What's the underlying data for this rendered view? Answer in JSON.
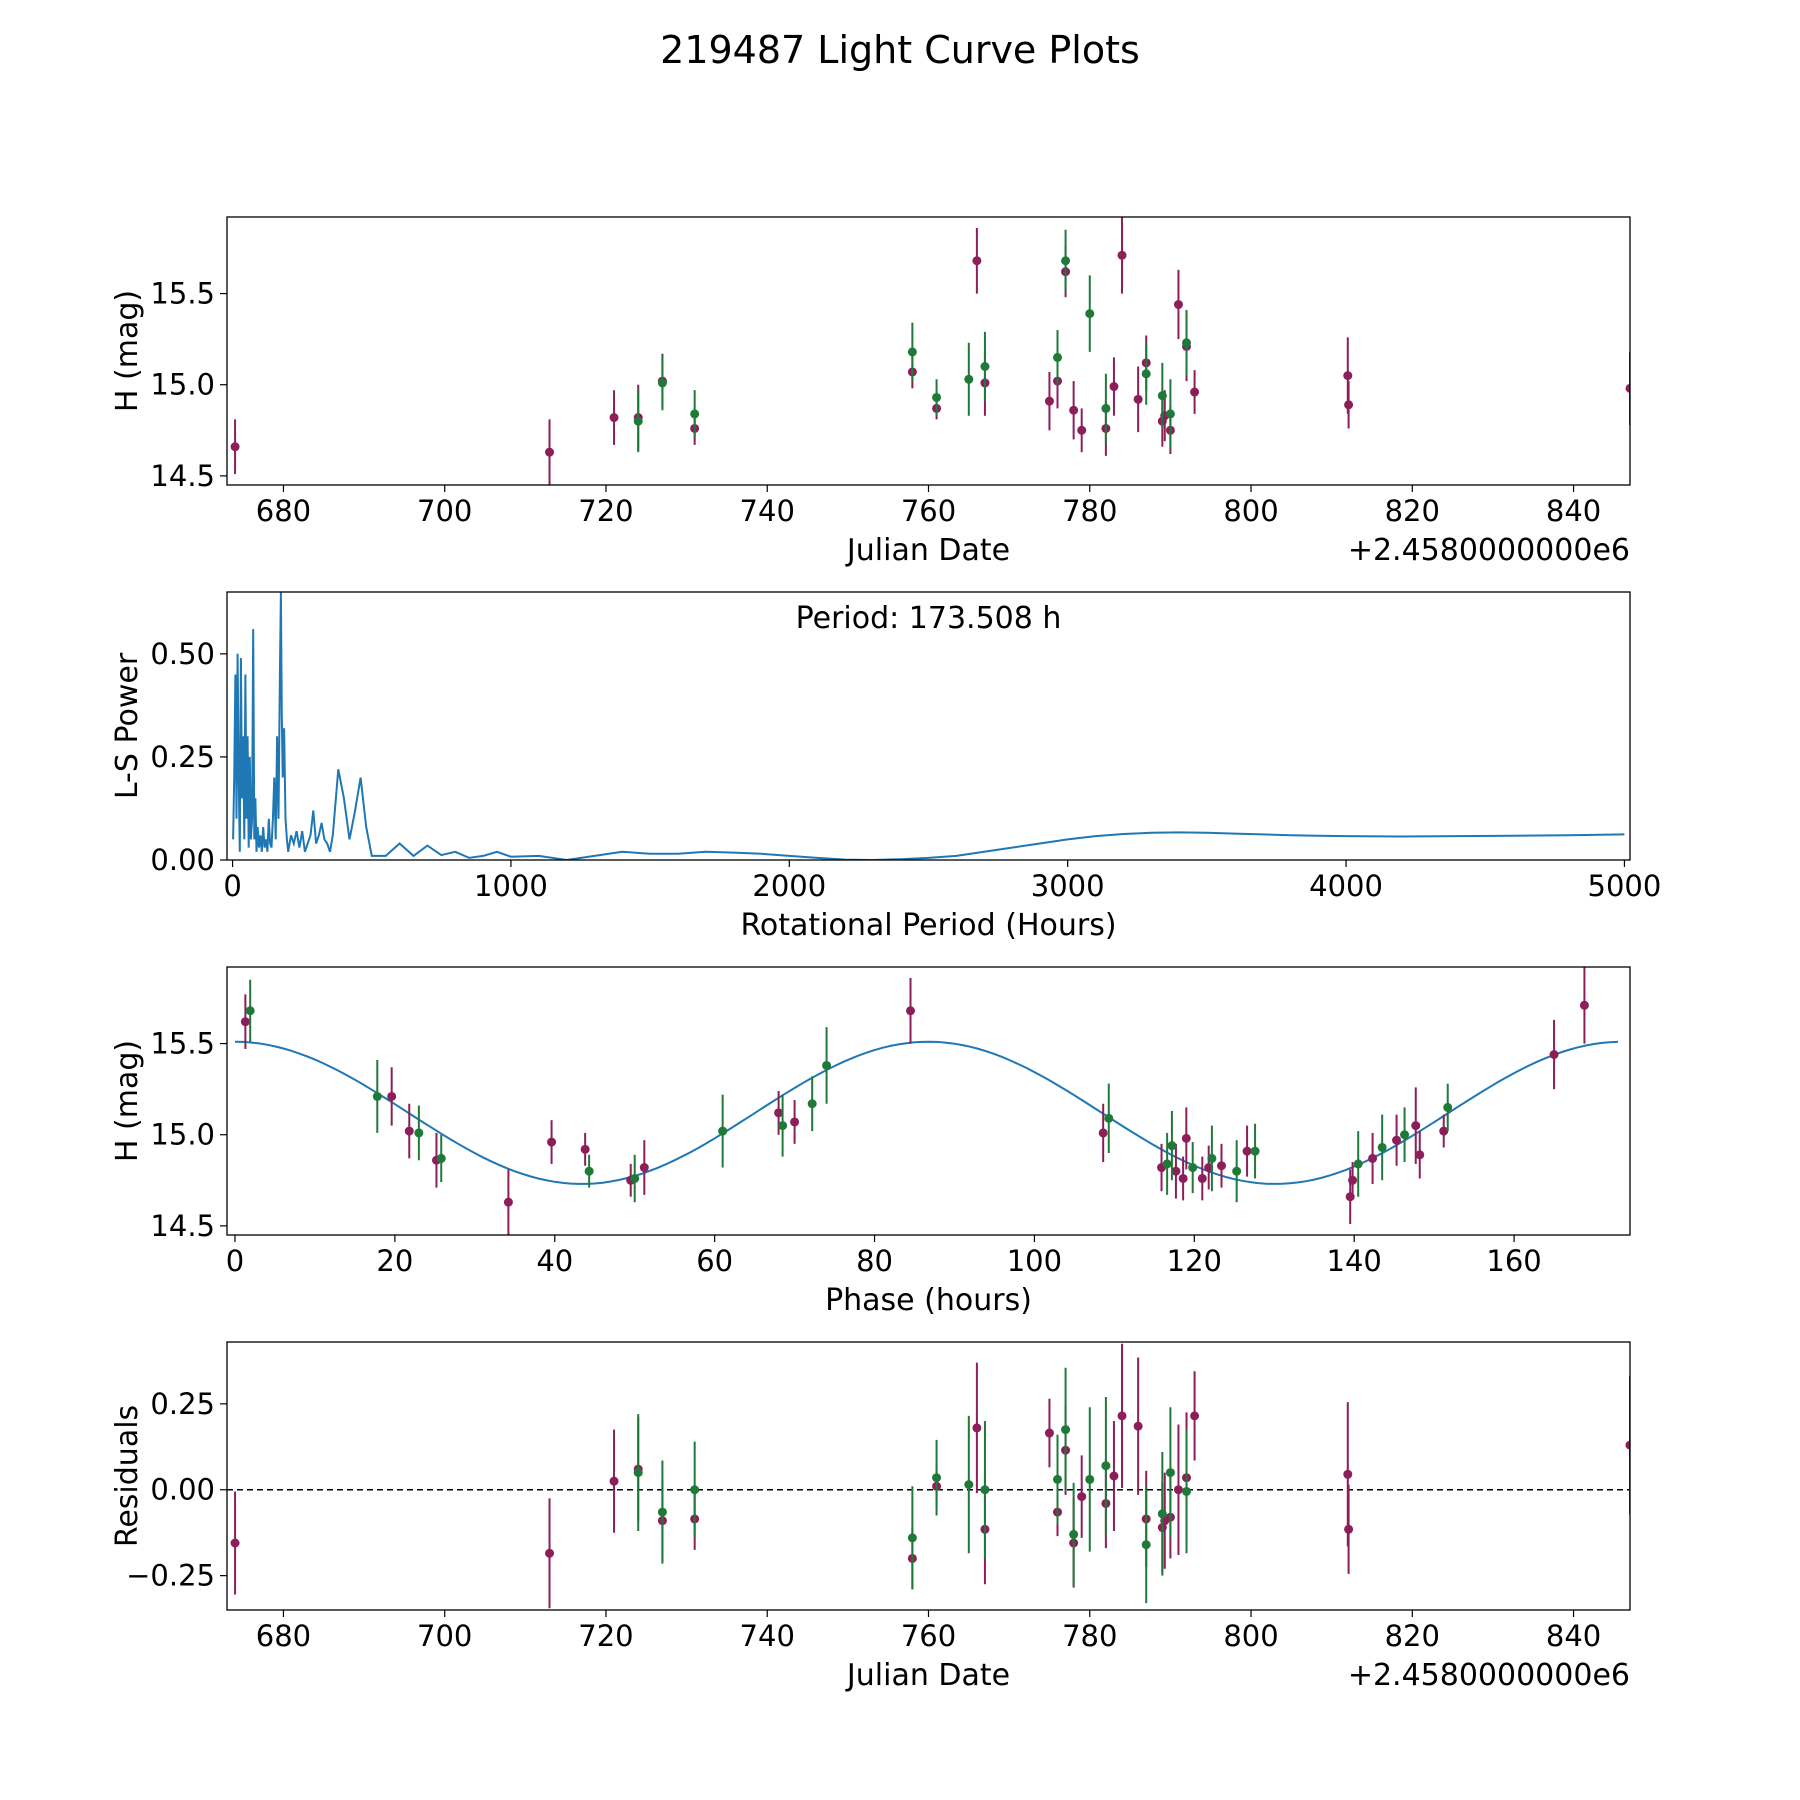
{
  "figure": {
    "title": "219487 Light Curve Plots"
  },
  "colors": {
    "filter_a": "#8c1e5a",
    "filter_b": "#1f7a3a",
    "model": "#1f77b4"
  },
  "chart_data": [
    {
      "type": "scatter",
      "name": "light-curve",
      "xlabel": "Julian Date",
      "ylabel": "H (mag)",
      "offset_label": "+2.4580000000e6",
      "xlim": [
        673,
        847
      ],
      "ylim": [
        14.45,
        15.92
      ],
      "xticks": [
        680,
        700,
        720,
        740,
        760,
        780,
        800,
        820,
        840
      ],
      "yticks": [
        14.5,
        15.0,
        15.5
      ],
      "ytick_labels": [
        "14.5",
        "15.0",
        "15.5"
      ],
      "series": [
        {
          "name": "filter-a",
          "color": "#8c1e5a",
          "x": [
            674,
            713,
            721,
            724,
            727,
            731,
            758,
            761,
            766,
            767,
            775,
            776,
            777,
            778,
            779,
            782,
            783,
            784,
            786,
            787,
            789,
            789.3,
            790,
            791,
            792,
            793,
            812,
            812.1,
            847
          ],
          "y": [
            14.66,
            14.63,
            14.82,
            14.82,
            15.02,
            14.76,
            15.07,
            14.87,
            15.68,
            15.01,
            14.91,
            15.02,
            15.62,
            14.86,
            14.75,
            14.76,
            14.99,
            15.71,
            14.92,
            15.12,
            14.8,
            14.83,
            14.75,
            15.44,
            15.21,
            14.96,
            15.05,
            14.89,
            14.98
          ],
          "err": [
            0.15,
            0.18,
            0.15,
            0.18,
            0.15,
            0.09,
            0.09,
            0.06,
            0.18,
            0.18,
            0.16,
            0.15,
            0.14,
            0.16,
            0.12,
            0.15,
            0.16,
            0.21,
            0.18,
            0.15,
            0.14,
            0.14,
            0.13,
            0.19,
            0.19,
            0.12,
            0.21,
            0.13,
            0.2
          ]
        },
        {
          "name": "filter-b",
          "color": "#1f7a3a",
          "x": [
            724,
            727,
            731,
            758,
            761,
            765,
            767,
            776,
            777,
            780,
            782,
            787,
            789,
            790,
            792
          ],
          "y": [
            14.8,
            15.01,
            14.84,
            15.18,
            14.93,
            15.03,
            15.1,
            15.15,
            15.68,
            15.39,
            14.87,
            15.06,
            14.94,
            14.84,
            15.23
          ],
          "err": [
            0.17,
            0.15,
            0.13,
            0.16,
            0.1,
            0.2,
            0.19,
            0.15,
            0.17,
            0.21,
            0.19,
            0.17,
            0.18,
            0.19,
            0.18
          ]
        }
      ]
    },
    {
      "type": "line",
      "name": "periodogram",
      "xlabel": "Rotational Period (Hours)",
      "ylabel": "L-S Power",
      "annotation": "Period: 173.508 h",
      "xlim": [
        -20,
        5020
      ],
      "ylim": [
        0,
        0.65
      ],
      "xticks": [
        0,
        1000,
        2000,
        3000,
        4000,
        5000
      ],
      "yticks": [
        0.0,
        0.25,
        0.5
      ],
      "ytick_labels": [
        "0.00",
        "0.25",
        "0.50"
      ],
      "x": [
        2,
        6,
        10,
        14,
        18,
        22,
        26,
        30,
        34,
        38,
        42,
        46,
        50,
        54,
        58,
        62,
        66,
        70,
        74,
        78,
        82,
        86,
        90,
        95,
        100,
        105,
        110,
        115,
        120,
        125,
        130,
        135,
        140,
        145,
        150,
        155,
        160,
        165,
        170,
        173.5,
        177,
        180,
        185,
        190,
        195,
        200,
        210,
        220,
        230,
        240,
        250,
        260,
        270,
        280,
        290,
        300,
        310,
        320,
        330,
        340,
        350,
        360,
        380,
        400,
        420,
        440,
        460,
        480,
        500,
        550,
        600,
        650,
        700,
        750,
        800,
        850,
        900,
        950,
        1000,
        1100,
        1200,
        1300,
        1400,
        1500,
        1600,
        1700,
        1800,
        1900,
        2000,
        2100,
        2200,
        2300,
        2400,
        2500,
        2600,
        2700,
        2800,
        2900,
        3000,
        3100,
        3200,
        3300,
        3400,
        3500,
        3600,
        3700,
        3800,
        3900,
        4000,
        4200,
        4400,
        4600,
        4800,
        5000
      ],
      "y": [
        0.05,
        0.2,
        0.45,
        0.1,
        0.5,
        0.2,
        0.02,
        0.49,
        0.15,
        0.3,
        0.05,
        0.45,
        0.1,
        0.3,
        0.03,
        0.25,
        0.05,
        0.1,
        0.56,
        0.05,
        0.15,
        0.02,
        0.08,
        0.03,
        0.06,
        0.02,
        0.08,
        0.03,
        0.05,
        0.02,
        0.1,
        0.04,
        0.03,
        0.1,
        0.2,
        0.05,
        0.3,
        0.1,
        0.45,
        0.65,
        0.35,
        0.2,
        0.32,
        0.1,
        0.05,
        0.02,
        0.06,
        0.04,
        0.07,
        0.03,
        0.07,
        0.02,
        0.04,
        0.06,
        0.12,
        0.04,
        0.06,
        0.09,
        0.05,
        0.04,
        0.02,
        0.06,
        0.22,
        0.15,
        0.05,
        0.12,
        0.2,
        0.08,
        0.01,
        0.01,
        0.04,
        0.01,
        0.035,
        0.012,
        0.02,
        0.005,
        0.01,
        0.02,
        0.008,
        0.01,
        0.0,
        0.01,
        0.02,
        0.015,
        0.015,
        0.02,
        0.018,
        0.015,
        0.01,
        0.005,
        0.001,
        0.0,
        0.002,
        0.005,
        0.01,
        0.02,
        0.03,
        0.04,
        0.05,
        0.058,
        0.063,
        0.066,
        0.067,
        0.066,
        0.064,
        0.062,
        0.06,
        0.059,
        0.058,
        0.057,
        0.058,
        0.059,
        0.06,
        0.062
      ]
    },
    {
      "type": "scatter",
      "name": "phase-folded",
      "xlabel": "Phase (hours)",
      "ylabel": "H (mag)",
      "xlim": [
        -1,
        174.5
      ],
      "ylim": [
        14.45,
        15.92
      ],
      "xticks": [
        0,
        20,
        40,
        60,
        80,
        100,
        120,
        140,
        160
      ],
      "yticks": [
        14.5,
        15.0,
        15.5
      ],
      "ytick_labels": [
        "14.5",
        "15.0",
        "15.5"
      ],
      "model": {
        "mean": 15.12,
        "amplitude": 0.39,
        "period": 86.75,
        "phase_peak": 0
      },
      "series": [
        {
          "name": "filter-a",
          "color": "#8c1e5a",
          "x": [
            1.3,
            19.6,
            21.8,
            25.2,
            34.2,
            39.6,
            43.8,
            49.5,
            51.2,
            68,
            70,
            84.5,
            108.6,
            115.9,
            117.7,
            118.6,
            119,
            121,
            121.8,
            123.4,
            126.6,
            139.5,
            139.8,
            142.3,
            145.3,
            147.7,
            148.2,
            151.2,
            165,
            168.8
          ],
          "y": [
            15.62,
            15.21,
            15.02,
            14.86,
            14.63,
            14.96,
            14.92,
            14.75,
            14.82,
            15.12,
            15.07,
            15.68,
            15.01,
            14.82,
            14.8,
            14.76,
            14.98,
            14.76,
            14.82,
            14.83,
            14.91,
            14.66,
            14.75,
            14.87,
            14.97,
            15.05,
            14.89,
            15.02,
            15.44,
            15.71
          ],
          "err": [
            0.15,
            0.16,
            0.15,
            0.15,
            0.18,
            0.12,
            0.09,
            0.09,
            0.15,
            0.12,
            0.12,
            0.18,
            0.16,
            0.13,
            0.15,
            0.12,
            0.17,
            0.12,
            0.12,
            0.12,
            0.14,
            0.15,
            0.1,
            0.14,
            0.14,
            0.21,
            0.13,
            0.09,
            0.19,
            0.21
          ]
        },
        {
          "name": "filter-b",
          "color": "#1f7a3a",
          "x": [
            1.9,
            17.8,
            23,
            25.8,
            44.3,
            50,
            61,
            68.5,
            72.2,
            74,
            109.3,
            116.6,
            117.2,
            119.8,
            122.2,
            125.3,
            127.6,
            140.5,
            143.5,
            146.3,
            151.7
          ],
          "y": [
            15.68,
            15.21,
            15.01,
            14.87,
            14.8,
            14.76,
            15.02,
            15.05,
            15.17,
            15.38,
            15.09,
            14.84,
            14.94,
            14.82,
            14.87,
            14.8,
            14.91,
            14.84,
            14.93,
            15.0,
            15.15
          ],
          "err": [
            0.17,
            0.2,
            0.15,
            0.13,
            0.09,
            0.13,
            0.2,
            0.17,
            0.15,
            0.21,
            0.19,
            0.17,
            0.19,
            0.14,
            0.18,
            0.17,
            0.15,
            0.18,
            0.18,
            0.15,
            0.13
          ]
        }
      ]
    },
    {
      "type": "scatter",
      "name": "residuals",
      "xlabel": "Julian Date",
      "ylabel": "Residuals",
      "offset_label": "+2.4580000000e6",
      "xlim": [
        673,
        847
      ],
      "ylim": [
        -0.35,
        0.43
      ],
      "xticks": [
        680,
        700,
        720,
        740,
        760,
        780,
        800,
        820,
        840
      ],
      "yticks": [
        -0.25,
        0.0,
        0.25
      ],
      "ytick_labels": [
        "−0.25",
        "0.00",
        "0.25"
      ],
      "zero_line": 0,
      "series": [
        {
          "name": "filter-a",
          "color": "#8c1e5a",
          "x": [
            674,
            713,
            721,
            724,
            727,
            731,
            758,
            761,
            766,
            767,
            775,
            776,
            777,
            778,
            779,
            782,
            783,
            784,
            786,
            787,
            789,
            789.3,
            790,
            791,
            792,
            793,
            812,
            812.1,
            847
          ],
          "y": [
            -0.155,
            -0.185,
            0.025,
            0.06,
            -0.09,
            -0.085,
            -0.2,
            0.01,
            0.18,
            -0.115,
            0.165,
            -0.065,
            0.115,
            -0.155,
            -0.02,
            -0.04,
            0.04,
            0.215,
            0.185,
            -0.085,
            -0.11,
            -0.09,
            -0.08,
            0.0,
            0.035,
            0.215,
            0.045,
            -0.115,
            0.13
          ],
          "err": [
            0.15,
            0.16,
            0.15,
            0.15,
            0.12,
            0.09,
            0.09,
            0.06,
            0.19,
            0.16,
            0.1,
            0.07,
            0.13,
            0.13,
            0.12,
            0.13,
            0.16,
            0.21,
            0.2,
            0.14,
            0.13,
            0.14,
            0.12,
            0.19,
            0.19,
            0.13,
            0.21,
            0.13,
            0.2
          ]
        },
        {
          "name": "filter-b",
          "color": "#1f7a3a",
          "x": [
            724,
            727,
            731,
            758,
            761,
            765,
            767,
            776,
            777,
            778,
            780,
            782,
            787,
            789,
            790,
            792
          ],
          "y": [
            0.05,
            -0.065,
            0.0,
            -0.14,
            0.035,
            0.015,
            0.0,
            0.03,
            0.175,
            -0.13,
            0.03,
            0.07,
            -0.16,
            -0.07,
            0.05,
            -0.005
          ],
          "err": [
            0.17,
            0.15,
            0.14,
            0.15,
            0.11,
            0.2,
            0.2,
            0.13,
            0.18,
            0.15,
            0.21,
            0.2,
            0.17,
            0.18,
            0.19,
            0.18
          ]
        }
      ]
    }
  ]
}
